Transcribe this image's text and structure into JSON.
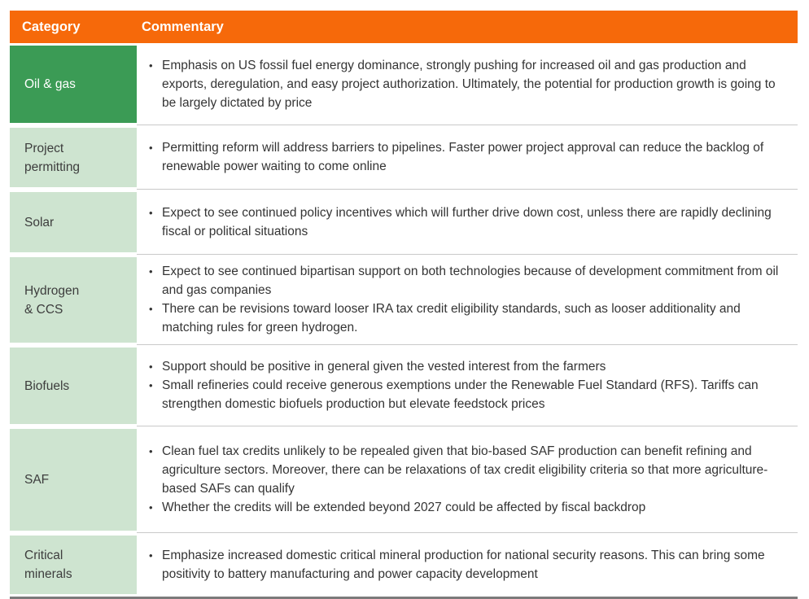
{
  "table": {
    "header": {
      "category_label": "Category",
      "commentary_label": "Commentary"
    },
    "rows": [
      {
        "category": "Oil & gas",
        "highlighted": true,
        "bullets": [
          "Emphasis on US fossil fuel energy dominance, strongly pushing for increased oil and gas production and exports, deregulation, and easy project authorization. Ultimately, the potential for production growth is going to be largely dictated by price"
        ]
      },
      {
        "category": "Project\npermitting",
        "highlighted": false,
        "bullets": [
          "Permitting reform will address barriers to pipelines. Faster power project approval can reduce the backlog of renewable power waiting to come online"
        ]
      },
      {
        "category": "Solar",
        "highlighted": false,
        "bullets": [
          "Expect to see continued policy incentives which will further drive down cost, unless there are rapidly declining fiscal or political situations"
        ]
      },
      {
        "category": "Hydrogen\n& CCS",
        "highlighted": false,
        "bullets": [
          "Expect to see continued bipartisan support on both technologies because of development commitment from oil and gas companies",
          "There can be revisions toward looser IRA tax credit eligibility standards, such as looser additionality and matching rules for green hydrogen."
        ]
      },
      {
        "category": "Biofuels",
        "highlighted": false,
        "bullets": [
          "Support should be positive in general given the vested interest from the farmers",
          "Small refineries could receive generous exemptions under the Renewable Fuel Standard (RFS). Tariffs can strengthen domestic biofuels production but elevate feedstock prices"
        ]
      },
      {
        "category": "SAF",
        "highlighted": false,
        "bullets": [
          "Clean fuel tax credits unlikely to be repealed given that bio-based SAF production can benefit refining and agriculture sectors. Moreover, there can be relaxations of tax credit eligibility criteria so that more agriculture-based SAFs can qualify",
          "Whether the credits will be extended beyond 2027 could be affected by fiscal backdrop"
        ]
      },
      {
        "category": "Critical\nminerals",
        "highlighted": false,
        "bullets": [
          "Emphasize increased domestic critical mineral production for national security reasons. This can bring some positivity to battery manufacturing and power capacity development"
        ]
      }
    ]
  },
  "colors": {
    "header_bg": "#F6690A",
    "category_highlight_bg": "#3B9B55",
    "category_bg": "#CEE4D0",
    "header_text": "#FFFFFF",
    "body_text": "#343434",
    "row_separator": "#C9C9C9",
    "bottom_border": "#7B7B7B"
  }
}
